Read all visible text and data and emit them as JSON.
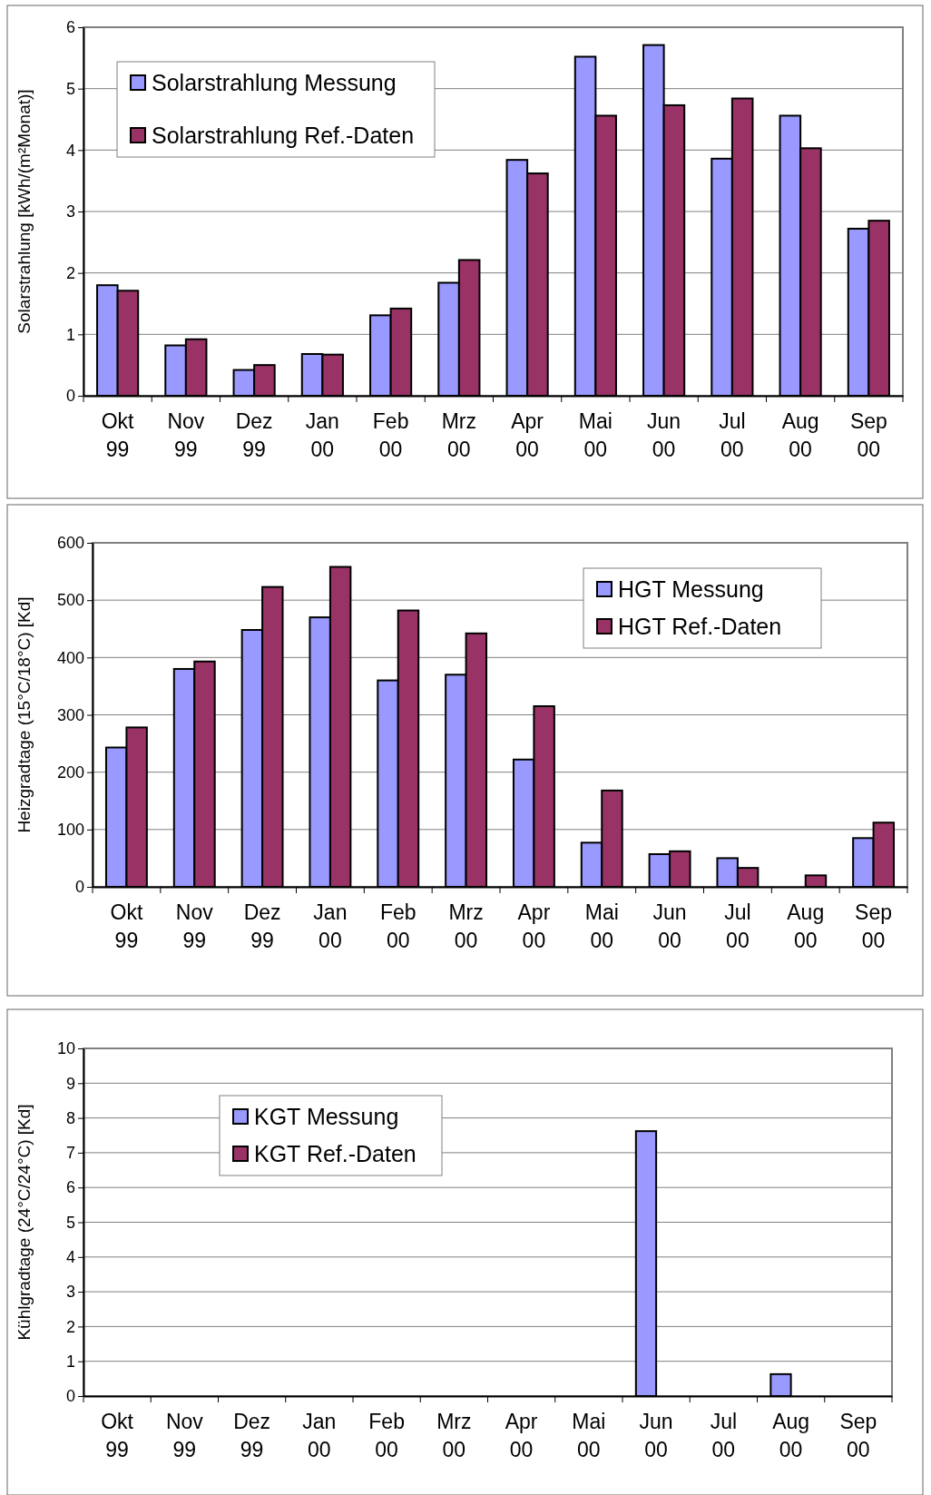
{
  "chart_data": [
    {
      "type": "bar",
      "ylabel": "Solarstrahlung [kWh/(m²Monat)]",
      "categories": [
        "Okt 99",
        "Nov 99",
        "Dez 99",
        "Jan 00",
        "Feb 00",
        "Mrz 00",
        "Apr 00",
        "Mai 00",
        "Jun 00",
        "Jul 00",
        "Aug 00",
        "Sep 00"
      ],
      "series": [
        {
          "name": "Solarstrahlung Messung",
          "color": "#9999ff",
          "values": [
            1.8,
            0.82,
            0.42,
            0.68,
            1.31,
            1.84,
            3.84,
            5.52,
            5.71,
            3.86,
            4.56,
            2.72
          ]
        },
        {
          "name": "Solarstrahlung Ref.-Daten",
          "color": "#993366",
          "values": [
            1.71,
            0.92,
            0.5,
            0.67,
            1.42,
            2.21,
            3.62,
            4.56,
            4.73,
            4.84,
            4.03,
            2.85
          ]
        }
      ],
      "ylim": [
        0,
        6
      ],
      "yticks": [
        0,
        1,
        2,
        3,
        4,
        5,
        6
      ],
      "grid": "y",
      "legend": "top left"
    },
    {
      "type": "bar",
      "ylabel": "Heizgradtage (15°C/18°C) [Kd]",
      "categories": [
        "Okt 99",
        "Nov 99",
        "Dez 99",
        "Jan 00",
        "Feb 00",
        "Mrz 00",
        "Apr 00",
        "Mai 00",
        "Jun 00",
        "Jul 00",
        "Aug 00",
        "Sep 00"
      ],
      "series": [
        {
          "name": "HGT Messung",
          "color": "#9999ff",
          "values": [
            243,
            380,
            448,
            470,
            360,
            370,
            222,
            77,
            57,
            50,
            0,
            85
          ]
        },
        {
          "name": "HGT Ref.-Daten",
          "color": "#993366",
          "values": [
            278,
            393,
            523,
            558,
            482,
            442,
            315,
            168,
            62,
            33,
            20,
            112
          ]
        }
      ],
      "ylim": [
        0,
        600
      ],
      "yticks": [
        0,
        100,
        200,
        300,
        400,
        500,
        600
      ],
      "grid": "y",
      "legend": "top right"
    },
    {
      "type": "bar",
      "ylabel": "Kühlgradtage (24°C/24°C) [Kd]",
      "categories": [
        "Okt 99",
        "Nov 99",
        "Dez 99",
        "Jan 00",
        "Feb 00",
        "Mrz 00",
        "Apr 00",
        "Mai 00",
        "Jun 00",
        "Jul 00",
        "Aug 00",
        "Sep 00"
      ],
      "series": [
        {
          "name": "KGT Messung",
          "color": "#9999ff",
          "values": [
            0,
            0,
            0,
            0,
            0,
            0,
            0,
            0,
            7.62,
            0,
            0.63,
            0
          ]
        },
        {
          "name": "KGT Ref.-Daten",
          "color": "#993366",
          "values": [
            0,
            0,
            0,
            0,
            0,
            0,
            0,
            0,
            0,
            0,
            0,
            0
          ]
        }
      ],
      "ylim": [
        0,
        10
      ],
      "yticks": [
        0,
        1,
        2,
        3,
        4,
        5,
        6,
        7,
        8,
        9,
        10
      ],
      "grid": "y",
      "legend": "top left"
    }
  ]
}
